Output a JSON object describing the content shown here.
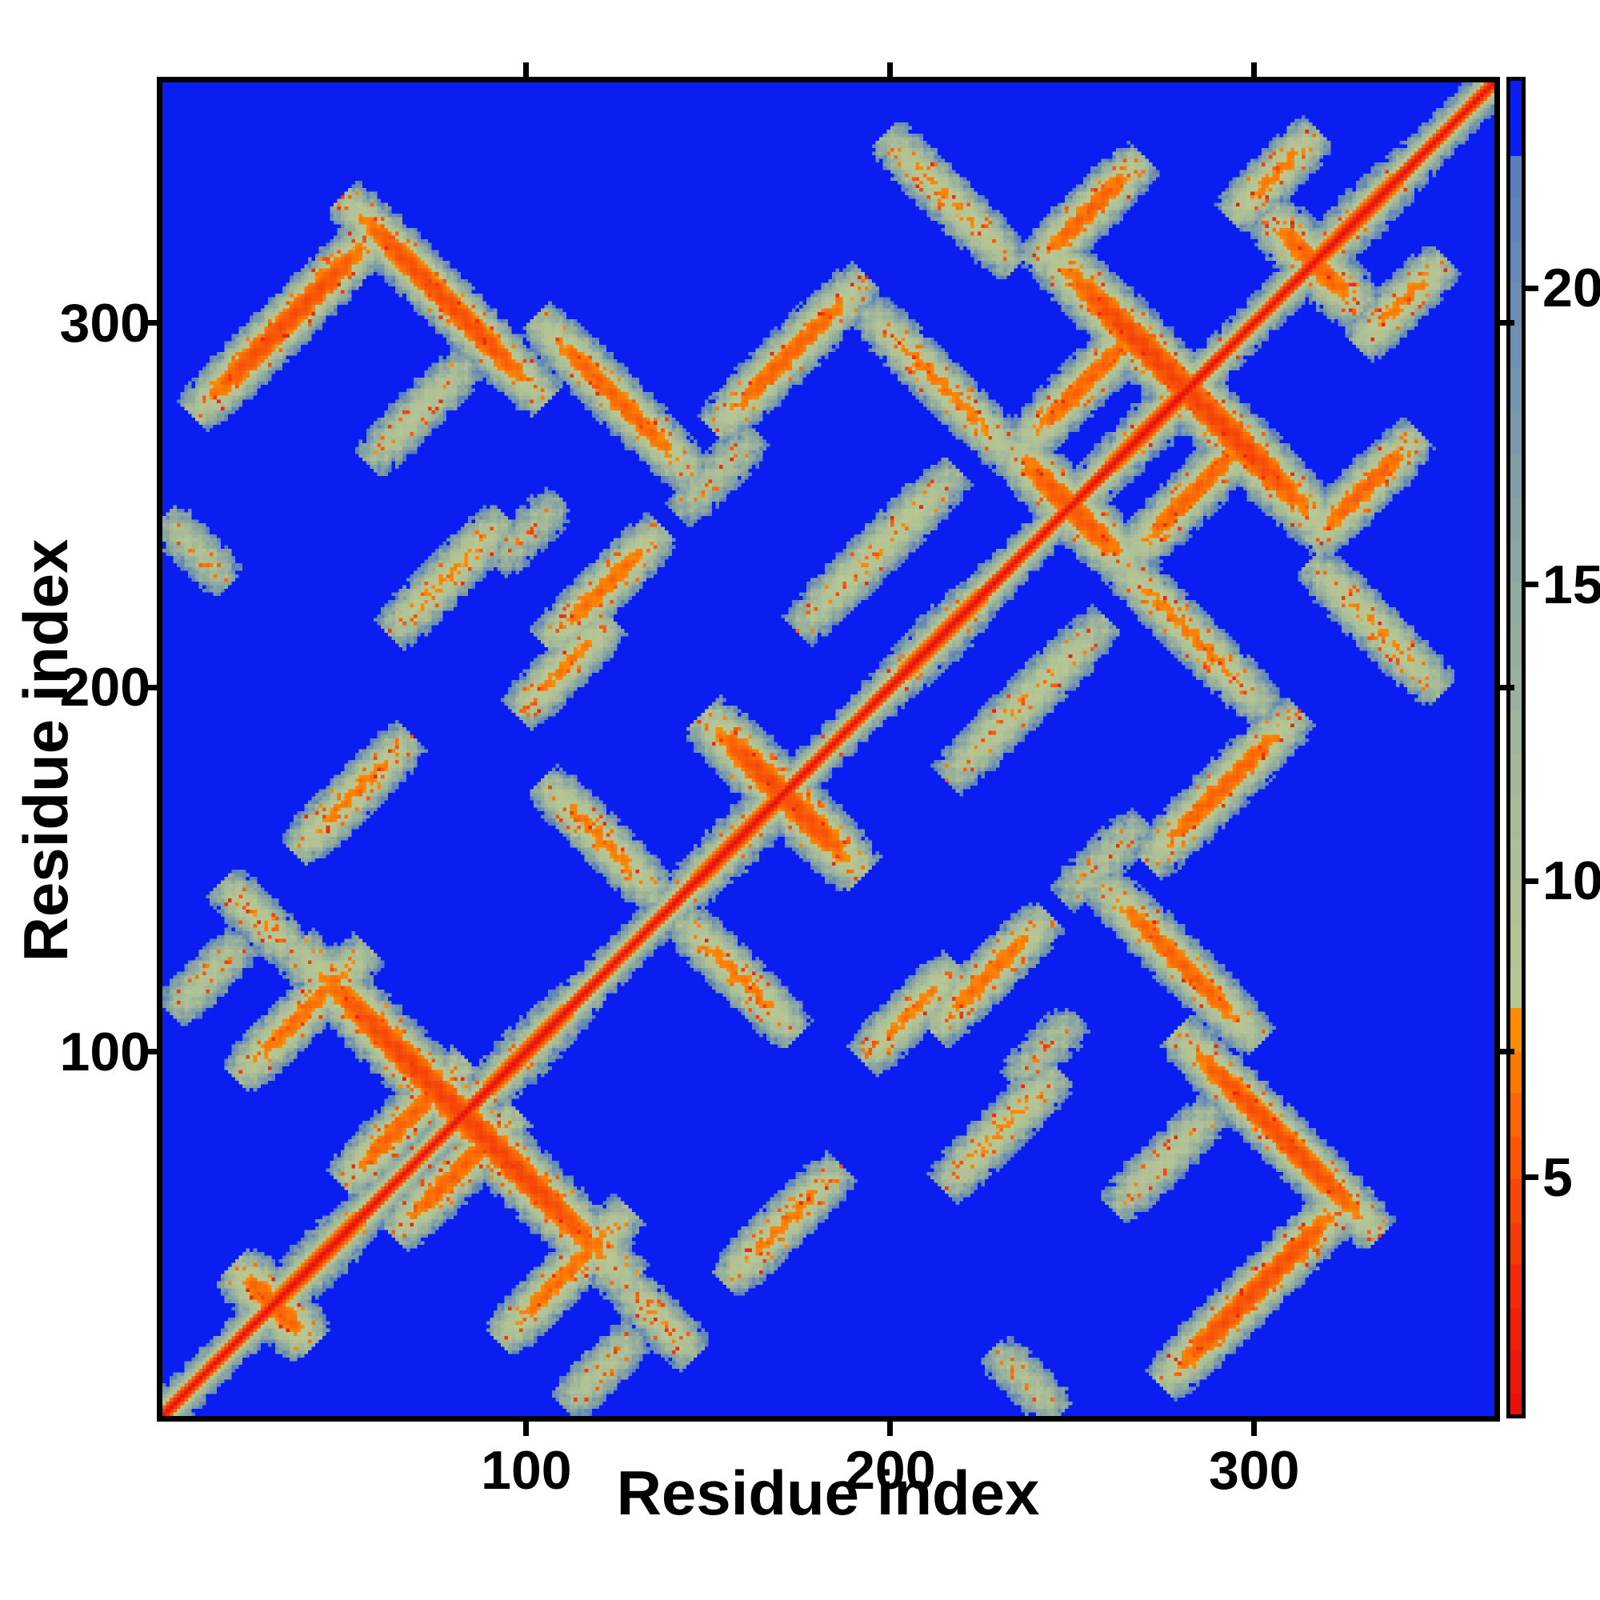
{
  "figure": {
    "background": "#ffffff",
    "frame_color": "#000000"
  },
  "chart_data": {
    "type": "heatmap",
    "subtype": "protein residue-residue distance map, symmetric about the red main diagonal",
    "xlabel": "Residue index",
    "ylabel": "Residue index",
    "n_residues": 366,
    "x_ticks": [
      100,
      200,
      300
    ],
    "x_tick_labels": [
      "100",
      "200",
      "300"
    ],
    "y_ticks": [
      100,
      200,
      300
    ],
    "y_tick_labels": [
      "100",
      "200",
      "300"
    ],
    "grid": false,
    "background_color_far": "#0a1ef2",
    "colorbar": {
      "position": "right",
      "vmin": 1.0,
      "vmax": 23.5,
      "ticks": [
        20,
        15,
        10,
        5
      ],
      "tick_labels": [
        "20",
        "15",
        "10",
        "5"
      ],
      "clip_to_blue_above": 22.3,
      "band_step": 0.72
    },
    "colormap_stops": [
      [
        1.0,
        "#e8110e"
      ],
      [
        3.0,
        "#ee280b"
      ],
      [
        4.5,
        "#f54609"
      ],
      [
        6.0,
        "#fa6407"
      ],
      [
        7.5,
        "#fd8c04"
      ],
      [
        7.55,
        "#bac792"
      ],
      [
        10.0,
        "#aec096"
      ],
      [
        12.5,
        "#9eb49a"
      ],
      [
        15.0,
        "#8da8a0"
      ],
      [
        17.5,
        "#7a99aa"
      ],
      [
        20.0,
        "#688cb5"
      ],
      [
        22.3,
        "#587cbe"
      ]
    ],
    "clip_color": "#0a1ef2",
    "diagonal": {
      "value_at_diagonal": 1.0,
      "slope_per_residue": 2.3
    },
    "diagonal_crossings": [
      {
        "center": 30,
        "arm": 11,
        "core": 6.0
      },
      {
        "center": 82,
        "arm": 46,
        "core": 4.5
      },
      {
        "center": 170,
        "arm": 22,
        "core": 5.0
      },
      {
        "center": 249,
        "arm": 17,
        "core": 5.5
      },
      {
        "center": 281,
        "arm": 40,
        "core": 4.5
      },
      {
        "center": 316,
        "arm": 13,
        "core": 6.0
      }
    ],
    "contacts": [
      {
        "i": 66,
        "j": 80,
        "len": 17,
        "dir": 1,
        "core": 6.0
      },
      {
        "i": 196,
        "j": 237,
        "len": 22,
        "dir": 1,
        "core": 8.0
      },
      {
        "i": 214,
        "j": 282,
        "len": 21,
        "dir": -1,
        "core": 7.0
      },
      {
        "i": 253,
        "j": 283,
        "len": 18,
        "dir": 1,
        "core": 6.0
      },
      {
        "i": 34,
        "j": 300,
        "len": 26,
        "dir": 1,
        "core": 5.0
      },
      {
        "i": 77,
        "j": 306,
        "len": 28,
        "dir": -1,
        "core": 5.0
      },
      {
        "i": 124,
        "j": 279,
        "len": 22,
        "dir": -1,
        "core": 6.0
      },
      {
        "i": 172,
        "j": 291,
        "len": 21,
        "dir": 1,
        "core": 6.0
      },
      {
        "i": 110,
        "j": 205,
        "len": 13,
        "dir": 1,
        "core": 7.0
      },
      {
        "i": 121,
        "j": 227,
        "len": 16,
        "dir": 1,
        "core": 6.5
      },
      {
        "i": 78,
        "j": 230,
        "len": 16,
        "dir": 1,
        "core": 7.5
      },
      {
        "i": 38,
        "j": 110,
        "len": 18,
        "dir": 1,
        "core": 6.5
      },
      {
        "i": 52,
        "j": 170,
        "len": 16,
        "dir": 1,
        "core": 7.0
      },
      {
        "i": 120,
        "j": 158,
        "len": 16,
        "dir": -1,
        "core": 7.0
      },
      {
        "i": 9,
        "j": 237,
        "len": 9,
        "dir": -1,
        "core": 10.0
      },
      {
        "i": 12,
        "j": 120,
        "len": 10,
        "dir": 1,
        "core": 9.5
      },
      {
        "i": 26,
        "j": 136,
        "len": 10,
        "dir": -1,
        "core": 8.0
      },
      {
        "i": 216,
        "j": 333,
        "len": 18,
        "dir": -1,
        "core": 7.5
      },
      {
        "i": 254,
        "j": 330,
        "len": 15,
        "dir": 1,
        "core": 6.0
      },
      {
        "i": 305,
        "j": 340,
        "len": 12,
        "dir": 1,
        "core": 7.0
      },
      {
        "i": 152,
        "j": 258,
        "len": 11,
        "dir": 1,
        "core": 10.5
      },
      {
        "i": 100,
        "j": 242,
        "len": 9,
        "dir": 1,
        "core": 11.0
      },
      {
        "i": 70,
        "j": 275,
        "len": 14,
        "dir": 1,
        "core": 9.0
      }
    ]
  }
}
